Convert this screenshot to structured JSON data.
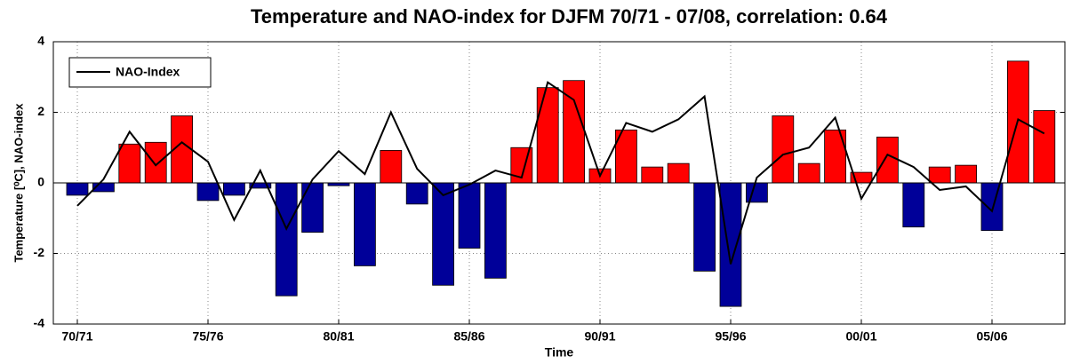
{
  "chart_data": {
    "type": "bar",
    "title": "Temperature and NAO-index for DJFM 70/71 - 07/08, correlation: 0.64",
    "xlabel": "Time",
    "ylabel": "Temperature [⁰C], NAO-index",
    "categories": [
      "70/71",
      null,
      null,
      null,
      null,
      "75/76",
      null,
      null,
      null,
      null,
      "80/81",
      null,
      null,
      null,
      null,
      "85/86",
      null,
      null,
      null,
      null,
      "90/91",
      null,
      null,
      null,
      null,
      "95/96",
      null,
      null,
      null,
      null,
      "00/01",
      null,
      null,
      null,
      null,
      "05/06",
      null,
      null
    ],
    "values": [
      -0.35,
      -0.25,
      1.1,
      1.15,
      1.9,
      -0.5,
      -0.35,
      -0.15,
      -3.2,
      -1.4,
      -0.08,
      -2.35,
      0.92,
      -0.6,
      -2.9,
      -1.85,
      -2.7,
      1.0,
      2.7,
      2.9,
      0.4,
      1.5,
      0.45,
      0.55,
      -2.5,
      -3.5,
      -0.55,
      1.9,
      0.55,
      1.5,
      0.3,
      1.3,
      -1.25,
      0.45,
      0.5,
      -1.35,
      3.45,
      2.05
    ],
    "positive_color": "#ff0000",
    "negative_color": "#000099",
    "line": {
      "name": "NAO-Index",
      "color": "#000000",
      "values": [
        -0.65,
        0.1,
        1.45,
        0.5,
        1.15,
        0.6,
        -1.05,
        0.35,
        -1.3,
        0.1,
        0.9,
        0.25,
        2.0,
        0.4,
        -0.35,
        -0.05,
        0.35,
        0.15,
        2.85,
        2.35,
        0.2,
        1.7,
        1.45,
        1.8,
        2.45,
        -2.3,
        0.15,
        0.8,
        1.0,
        1.85,
        -0.45,
        0.8,
        0.45,
        -0.2,
        -0.1,
        -0.8,
        1.8,
        1.4
      ]
    },
    "ylim": [
      -4,
      4
    ],
    "yticks": [
      -4,
      -2,
      0,
      2,
      4
    ],
    "grid": true,
    "legend": "upper left"
  }
}
